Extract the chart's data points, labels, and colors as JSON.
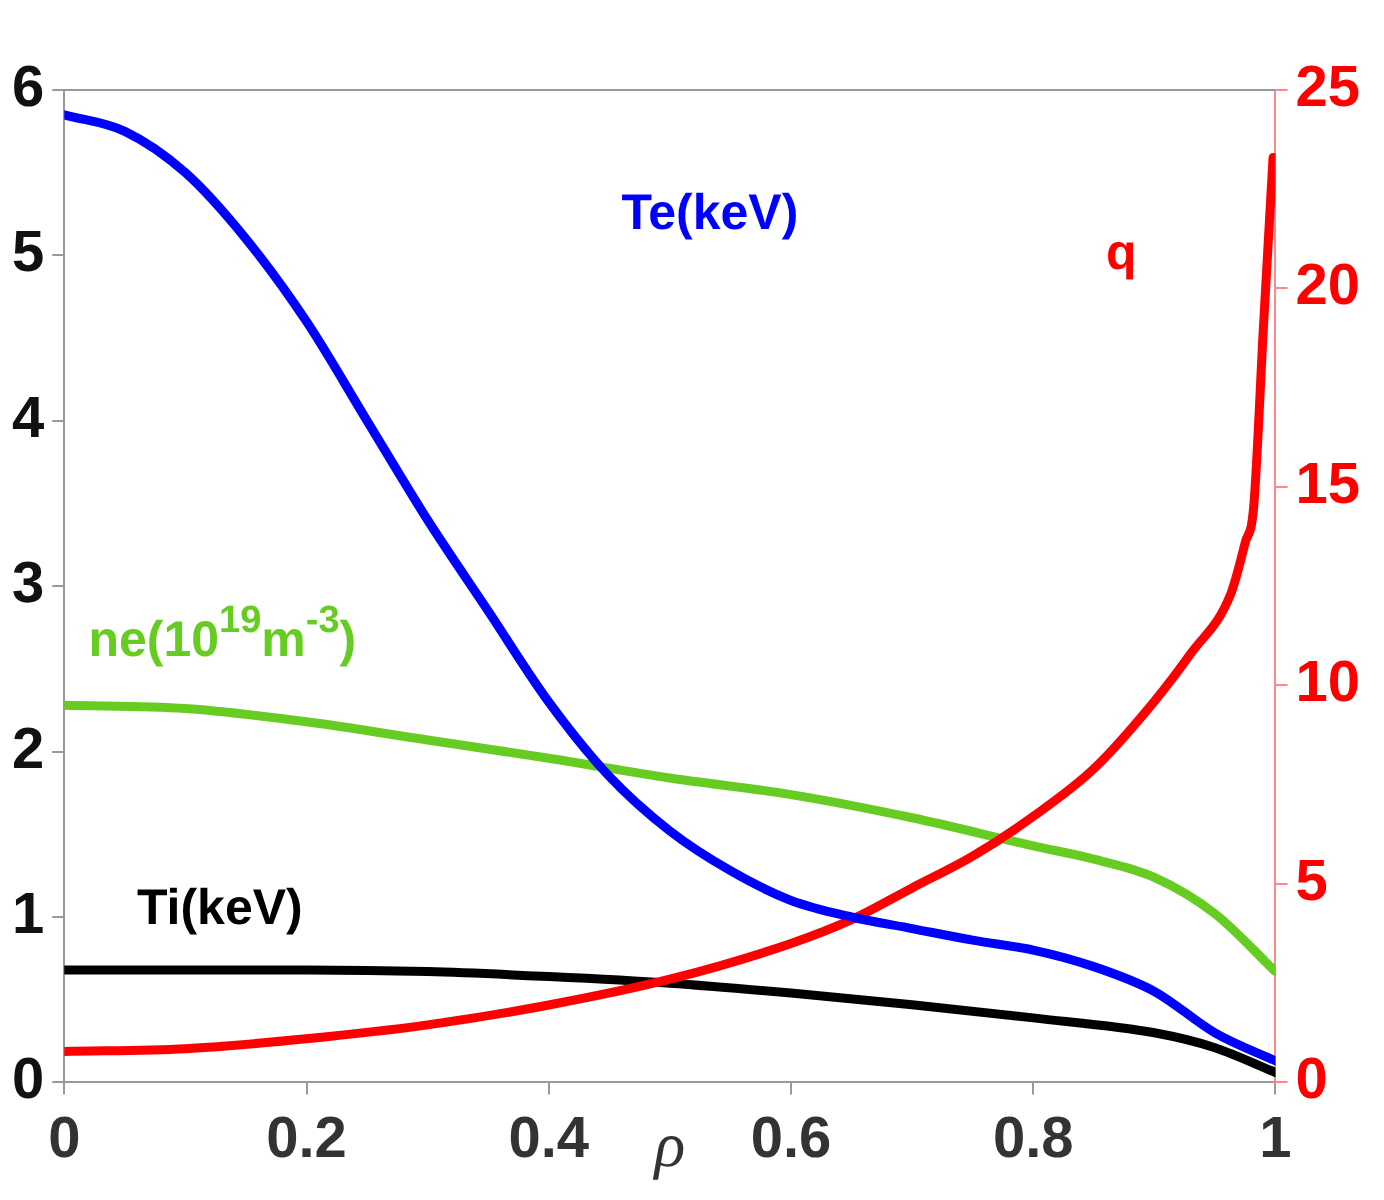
{
  "chart_data": {
    "type": "line",
    "xlabel": "ρ",
    "xlim": [
      0,
      1
    ],
    "xticks": [
      0,
      0.2,
      0.4,
      0.6,
      0.8,
      1
    ],
    "ylim": [
      0,
      6
    ],
    "yticks": [
      0,
      1,
      2,
      3,
      4,
      5,
      6
    ],
    "y2lim": [
      0,
      25
    ],
    "y2ticks": [
      0,
      5,
      10,
      15,
      20,
      25
    ],
    "grid": false,
    "legend": false,
    "marker": "none",
    "line_style": "solid",
    "series": [
      {
        "name": "Te(keV)",
        "color": "#0000ff",
        "x": [
          0,
          0.05,
          0.1,
          0.15,
          0.2,
          0.25,
          0.3,
          0.35,
          0.4,
          0.45,
          0.5,
          0.55,
          0.6,
          0.65,
          0.7,
          0.75,
          0.8,
          0.85,
          0.9,
          0.95,
          1
        ],
        "values": [
          5.85,
          5.75,
          5.5,
          5.1,
          4.6,
          4.0,
          3.4,
          2.85,
          2.3,
          1.85,
          1.52,
          1.28,
          1.1,
          1.0,
          0.93,
          0.86,
          0.8,
          0.7,
          0.55,
          0.3,
          0.13
        ]
      },
      {
        "name": "q",
        "color": "#ff0000",
        "axis": "y2",
        "x": [
          0,
          0.1,
          0.2,
          0.3,
          0.4,
          0.5,
          0.6,
          0.65,
          0.7,
          0.75,
          0.8,
          0.85,
          0.9,
          0.93,
          0.963,
          0.975,
          0.982,
          0.99,
          0.998
        ],
        "values": [
          0.78,
          0.85,
          1.1,
          1.45,
          1.95,
          2.6,
          3.5,
          4.1,
          4.9,
          5.7,
          6.7,
          7.9,
          9.6,
          10.8,
          12.3,
          13.6,
          14.5,
          19,
          23.3
        ]
      },
      {
        "name": "ne(10$^{19}$m$^{-3}$)",
        "color": "#66cc22",
        "x": [
          0,
          0.1,
          0.2,
          0.3,
          0.4,
          0.5,
          0.6,
          0.7,
          0.8,
          0.85,
          0.9,
          0.95,
          1
        ],
        "values": [
          2.28,
          2.26,
          2.18,
          2.07,
          1.96,
          1.84,
          1.74,
          1.6,
          1.43,
          1.35,
          1.24,
          1.02,
          0.67
        ]
      },
      {
        "name": "Ti(keV)",
        "color": "#000000",
        "x": [
          0,
          0.1,
          0.2,
          0.3,
          0.4,
          0.5,
          0.6,
          0.7,
          0.8,
          0.9,
          0.95,
          1
        ],
        "values": [
          0.68,
          0.68,
          0.68,
          0.67,
          0.64,
          0.6,
          0.54,
          0.47,
          0.39,
          0.3,
          0.21,
          0.06
        ]
      }
    ]
  }
}
